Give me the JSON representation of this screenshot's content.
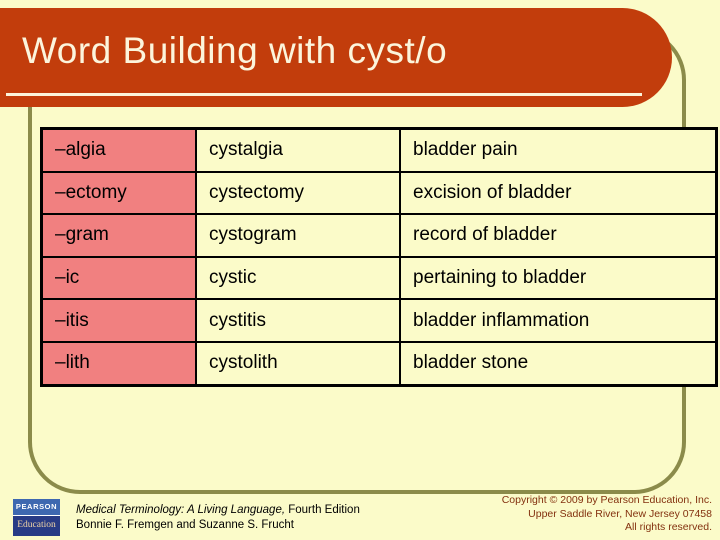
{
  "slide": {
    "title": "Word Building with cyst/o"
  },
  "table": {
    "rows": [
      {
        "suffix": "–algia",
        "term": "cystalgia",
        "definition": "bladder pain"
      },
      {
        "suffix": "–ectomy",
        "term": "cystectomy",
        "definition": "excision of bladder"
      },
      {
        "suffix": "–gram",
        "term": "cystogram",
        "definition": "record of bladder"
      },
      {
        "suffix": "–ic",
        "term": "cystic",
        "definition": "pertaining to bladder"
      },
      {
        "suffix": "–itis",
        "term": "cystitis",
        "definition": "bladder inflammation"
      },
      {
        "suffix": "–lith",
        "term": "cystolith",
        "definition": "bladder stone"
      }
    ]
  },
  "footer": {
    "logo": {
      "top": "PEARSON",
      "bottom": "Education"
    },
    "citation": {
      "book_title": "Medical Terminology: A Living Language,",
      "edition": " Fourth Edition",
      "authors": "Bonnie F. Fremgen and Suzanne S. Frucht"
    },
    "copyright": {
      "line1": "Copyright © 2009 by Pearson Education, Inc.",
      "line2": "Upper Saddle River, New Jersey 07458",
      "line3": "All rights reserved."
    }
  },
  "colors": {
    "background": "#FBFBC9",
    "header_bar": "#C23D0C",
    "title_text": "#FCF5DC",
    "frame_outline": "#8B8B4A",
    "suffix_cell": "#F18080",
    "table_border": "#000000",
    "copyright_text": "#83310F",
    "logo_top_blue": "#3E68B0",
    "logo_bottom_blue": "#283B85"
  }
}
